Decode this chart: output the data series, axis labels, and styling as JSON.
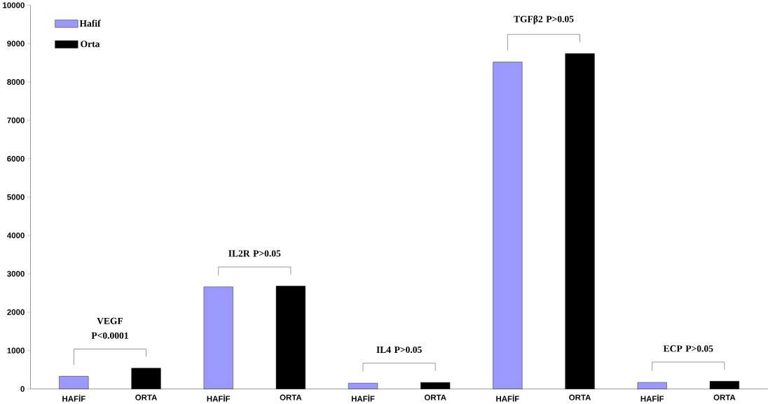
{
  "chart_data": {
    "type": "bar",
    "categories": [
      "HAFİF",
      "ORTA",
      "HAFİF",
      "ORTA",
      "HAFİF",
      "ORTA",
      "HAFİF",
      "ORTA",
      "HAFİF",
      "ORTA"
    ],
    "series": [
      {
        "name": "Hafif",
        "color": "#9999ff",
        "values": [
          330,
          null,
          2660,
          null,
          150,
          null,
          8520,
          null,
          170,
          null
        ]
      },
      {
        "name": "Orta",
        "color": "#000000",
        "values": [
          null,
          540,
          null,
          2680,
          null,
          170,
          null,
          8740,
          null,
          200
        ]
      }
    ],
    "ylim": [
      0,
      10000
    ],
    "yticks": [
      0,
      1000,
      2000,
      3000,
      4000,
      5000,
      6000,
      7000,
      8000,
      9000,
      10000
    ],
    "annotations": [
      "VEGF P<0.0001",
      "IL2R P>0.05",
      "IL4 P>0.05",
      "TGFβ2 P>0.05",
      "ECP P>0.05"
    ],
    "grid": false,
    "legend": "top left"
  }
}
